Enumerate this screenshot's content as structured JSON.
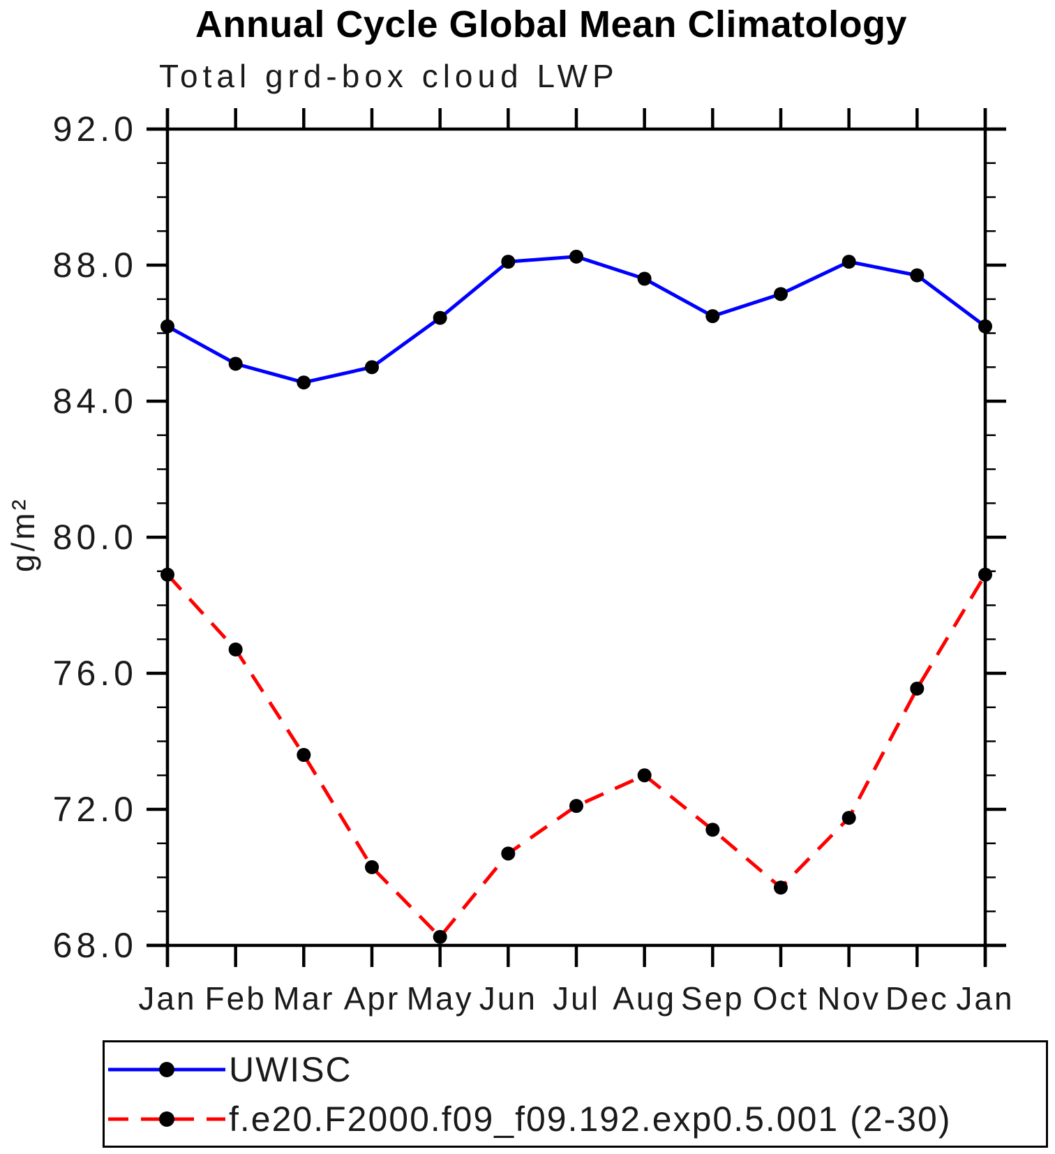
{
  "chart_data": {
    "type": "line",
    "title": "Annual Cycle Global Mean Climatology",
    "subtitle": "Total grd-box cloud LWP",
    "ylabel": "g/m²",
    "xlabel": "",
    "categories": [
      "Jan",
      "Feb",
      "Mar",
      "Apr",
      "May",
      "Jun",
      "Jul",
      "Aug",
      "Sep",
      "Oct",
      "Nov",
      "Dec",
      "Jan"
    ],
    "ylim": [
      68.0,
      92.0
    ],
    "ytick_major_step": 4.0,
    "ytick_minor_step": 1.0,
    "ytick_labels": [
      "68.0",
      "72.0",
      "76.0",
      "80.0",
      "84.0",
      "88.0",
      "92.0"
    ],
    "grid": false,
    "legend_position": "bottom-box",
    "series": [
      {
        "name": "UWISC",
        "line_color": "#0000ff",
        "line_style": "solid",
        "marker": "filled-circle",
        "marker_color": "#000000",
        "values": [
          86.2,
          85.1,
          84.55,
          85.0,
          86.45,
          88.1,
          88.25,
          87.6,
          86.5,
          87.15,
          88.1,
          87.7,
          86.2
        ]
      },
      {
        "name": "f.e20.F2000.f09_f09.192.exp0.5.001 (2-30)",
        "line_color": "#ff0000",
        "line_style": "dashed",
        "marker": "filled-circle",
        "marker_color": "#000000",
        "values": [
          78.9,
          76.7,
          73.6,
          70.3,
          68.25,
          70.7,
          72.1,
          73.0,
          71.4,
          69.7,
          71.75,
          75.55,
          78.9
        ]
      }
    ]
  },
  "colors": {
    "axis": "#000000",
    "text": "#1a1a1a",
    "background": "#ffffff"
  }
}
